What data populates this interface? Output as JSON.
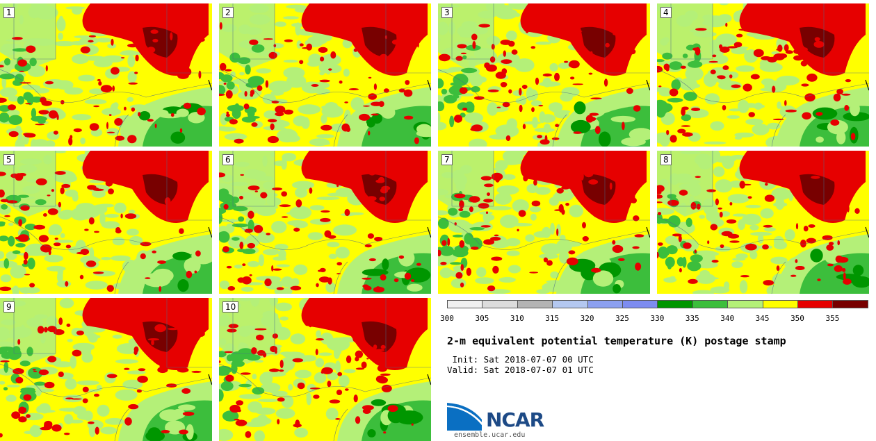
{
  "panels": [
    {
      "label": "1"
    },
    {
      "label": "2"
    },
    {
      "label": "3"
    },
    {
      "label": "4"
    },
    {
      "label": "5"
    },
    {
      "label": "6"
    },
    {
      "label": "7"
    },
    {
      "label": "8"
    },
    {
      "label": "9"
    },
    {
      "label": "10"
    }
  ],
  "colorbar": {
    "ticks": [
      "300",
      "305",
      "310",
      "315",
      "320",
      "325",
      "330",
      "335",
      "340",
      "345",
      "350",
      "355"
    ],
    "colors": [
      "#f0f0f0",
      "#dcdcdc",
      "#b4b4b4",
      "#b4c8f0",
      "#8ca0f0",
      "#7d8cf0",
      "#009600",
      "#3cbe3c",
      "#b4f078",
      "#ffff00",
      "#e60000",
      "#780000"
    ]
  },
  "title": "2-m equivalent potential temperature (K) postage stamp",
  "init_text": " Init: Sat 2018-07-07 00 UTC",
  "valid_text": "Valid: Sat 2018-07-07 01 UTC",
  "logo": {
    "text": "NCAR",
    "url": "ensemble.ucar.edu"
  },
  "map_colors": {
    "yellow": "#ffff00",
    "red": "#e60000",
    "darkred": "#780000",
    "lightgreen": "#b4f078",
    "green": "#3cbe3c",
    "darkgreen": "#009600"
  }
}
